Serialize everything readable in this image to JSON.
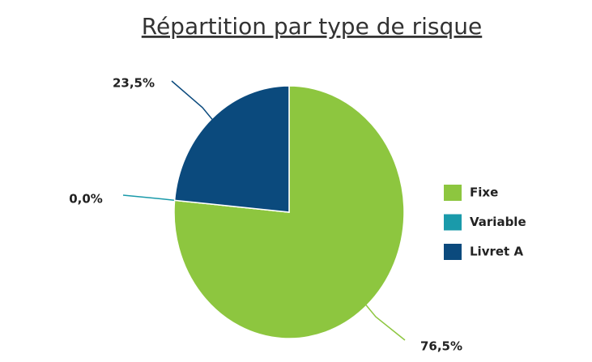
{
  "chart_data": {
    "type": "pie",
    "title": "Répartition par type de risque",
    "categories": [
      "Fixe",
      "Variable",
      "Livret A"
    ],
    "values": [
      76.5,
      0,
      23.5
    ],
    "value_labels": [
      "76,5%",
      "0,0%",
      "23,5%"
    ],
    "colors": [
      "#8dc63f",
      "#1a9aaa",
      "#0b4a7d"
    ],
    "legend": "right"
  }
}
